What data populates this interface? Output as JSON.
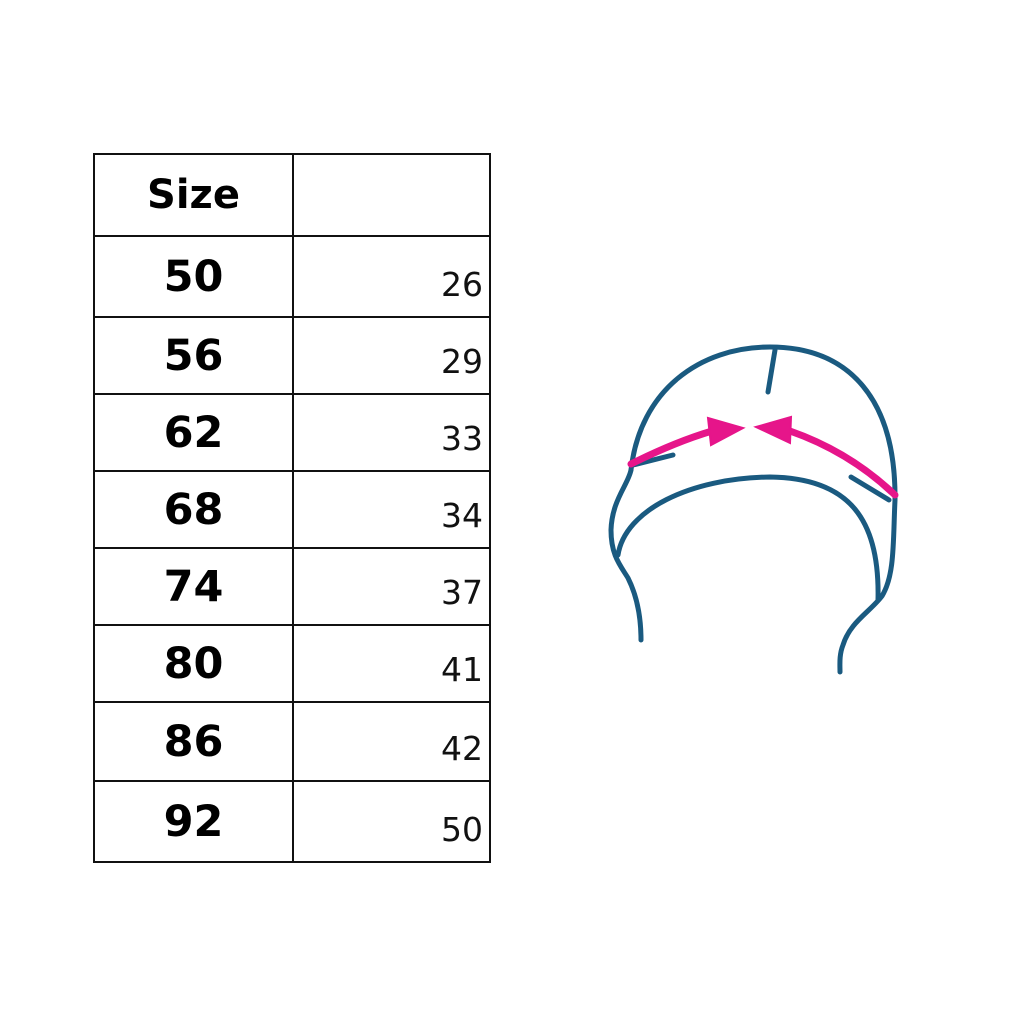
{
  "table": {
    "headers": [
      "Size",
      ""
    ],
    "rows": [
      {
        "size": "50",
        "value": "26"
      },
      {
        "size": "56",
        "value": "29"
      },
      {
        "size": "62",
        "value": "33"
      },
      {
        "size": "68",
        "value": "34"
      },
      {
        "size": "74",
        "value": "37"
      },
      {
        "size": "80",
        "value": "41"
      },
      {
        "size": "86",
        "value": "42"
      },
      {
        "size": "92",
        "value": "50"
      }
    ]
  },
  "illustration": {
    "icon": "hat-measurement-icon",
    "outline_color": "#1a5a80",
    "arrow_color": "#e6158a"
  }
}
